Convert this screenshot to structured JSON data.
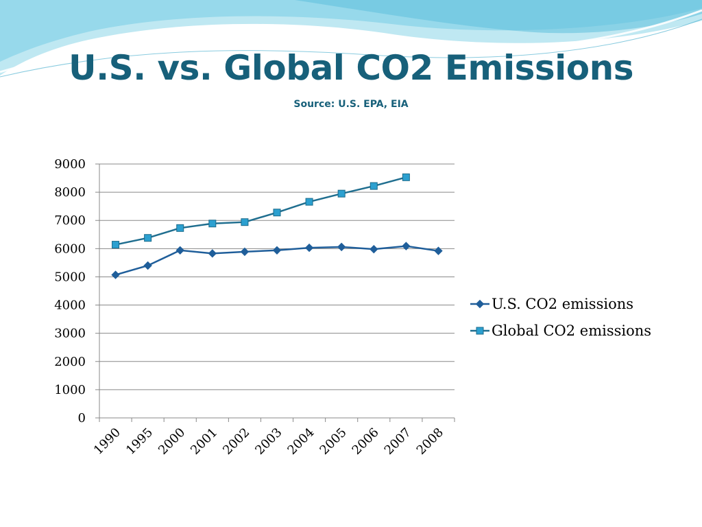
{
  "slide": {
    "title": "U.S. vs. Global CO2 Emissions",
    "subtitle": "Source: U.S. EPA, EIA"
  },
  "colors": {
    "title": "#17607a",
    "us_series": "#1f5e9a",
    "global_series_line": "#1f6e8f",
    "global_series_marker": "#2ca0d0",
    "grid": "#888888",
    "decor_light": "#bfe8f2",
    "decor_mid": "#7fd0e6"
  },
  "chart_data": {
    "type": "line",
    "categories": [
      "1990",
      "1995",
      "2000",
      "2001",
      "2002",
      "2003",
      "2004",
      "2005",
      "2006",
      "2007",
      "2008"
    ],
    "series": [
      {
        "name": "U.S. CO2 emissions",
        "marker": "diamond",
        "values": [
          5070,
          5400,
          5940,
          5830,
          5890,
          5940,
          6030,
          6060,
          5980,
          6090,
          5920
        ]
      },
      {
        "name": "Global CO2 emissions",
        "marker": "square",
        "values": [
          6140,
          6380,
          6730,
          6890,
          6940,
          7280,
          7660,
          7950,
          8220,
          8530,
          null
        ]
      }
    ],
    "yticks": [
      0,
      1000,
      2000,
      3000,
      4000,
      5000,
      6000,
      7000,
      8000,
      9000
    ],
    "ylim": [
      0,
      9000
    ],
    "grid": true,
    "legend": "right",
    "title": "",
    "xlabel": "",
    "ylabel": ""
  }
}
